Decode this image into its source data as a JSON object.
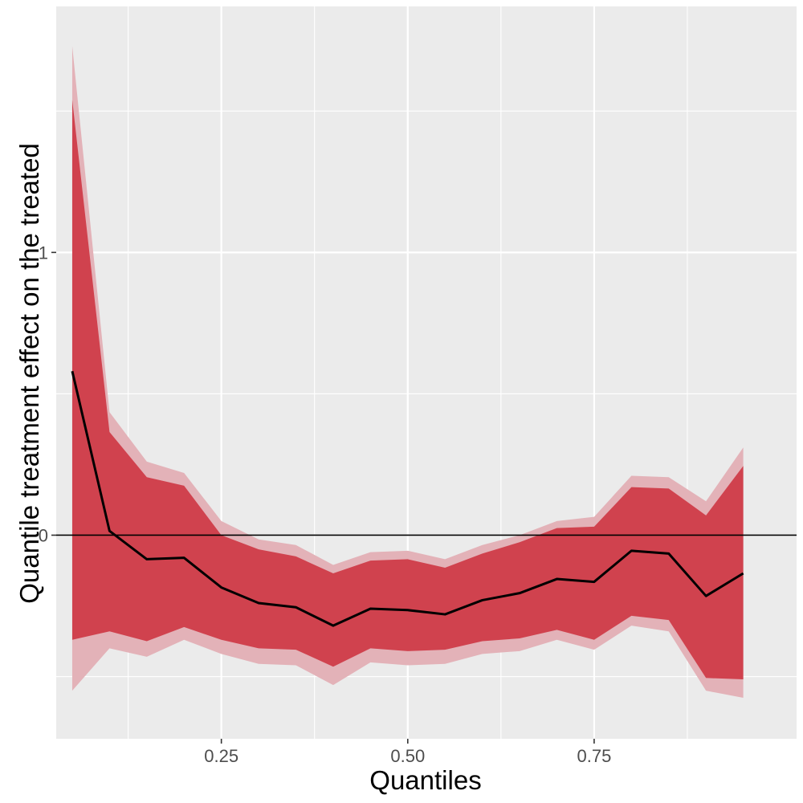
{
  "chart_data": {
    "type": "area",
    "xlabel": "Quantiles",
    "ylabel": "Quantile treatment effect on the treated",
    "x_ticks": [
      0.25,
      0.5,
      0.75
    ],
    "x_tick_labels": [
      "0.25",
      "0.50",
      "0.75"
    ],
    "y_ticks": [
      0,
      1
    ],
    "y_tick_labels": [
      "0",
      "1"
    ],
    "xlim": [
      0.0285,
      1.0215
    ],
    "ylim": [
      -0.72,
      1.87
    ],
    "grid": true,
    "reference_line_y": 0,
    "colors": {
      "panel": "#ebebeb",
      "grid": "#ffffff",
      "inner_band": "#d0424e",
      "outer_band": "#e3b2b8",
      "line": "#000000"
    },
    "x": [
      0.05,
      0.1,
      0.15,
      0.2,
      0.25,
      0.3,
      0.35,
      0.4,
      0.45,
      0.5,
      0.55,
      0.6,
      0.65,
      0.7,
      0.75,
      0.8,
      0.85,
      0.9,
      0.95
    ],
    "series": [
      {
        "role": "estimate",
        "values": [
          0.58,
          0.015,
          -0.085,
          -0.08,
          -0.185,
          -0.24,
          -0.255,
          -0.32,
          -0.26,
          -0.265,
          -0.28,
          -0.23,
          -0.205,
          -0.155,
          -0.165,
          -0.055,
          -0.065,
          -0.215,
          -0.135
        ]
      },
      {
        "role": "inner_band",
        "lower": [
          -0.37,
          -0.34,
          -0.375,
          -0.325,
          -0.37,
          -0.4,
          -0.405,
          -0.465,
          -0.4,
          -0.41,
          -0.405,
          -0.375,
          -0.365,
          -0.335,
          -0.37,
          -0.285,
          -0.3,
          -0.505,
          -0.51
        ],
        "upper": [
          1.54,
          0.365,
          0.205,
          0.175,
          0.0,
          -0.05,
          -0.075,
          -0.135,
          -0.09,
          -0.085,
          -0.115,
          -0.065,
          -0.025,
          0.025,
          0.03,
          0.17,
          0.165,
          0.07,
          0.245
        ]
      },
      {
        "role": "outer_band",
        "lower": [
          -0.55,
          -0.4,
          -0.43,
          -0.37,
          -0.42,
          -0.455,
          -0.46,
          -0.53,
          -0.45,
          -0.46,
          -0.455,
          -0.42,
          -0.41,
          -0.37,
          -0.405,
          -0.32,
          -0.34,
          -0.55,
          -0.575
        ],
        "upper": [
          1.73,
          0.435,
          0.26,
          0.22,
          0.05,
          -0.015,
          -0.035,
          -0.105,
          -0.06,
          -0.055,
          -0.085,
          -0.035,
          0.0,
          0.05,
          0.065,
          0.21,
          0.205,
          0.12,
          0.31
        ]
      }
    ]
  }
}
